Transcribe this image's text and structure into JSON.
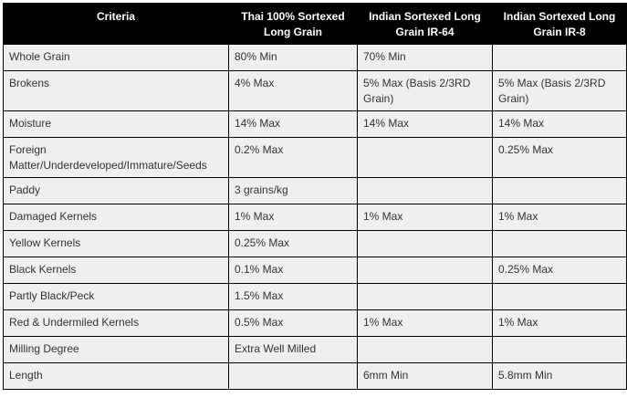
{
  "headers": [
    "Criteria",
    "Thai 100% Sortexed Long Grain",
    "Indian Sortexed Long Grain IR-64",
    "Indian Sortexed Long Grain IR-8"
  ],
  "rows": [
    [
      "Whole Grain",
      "80% Min",
      "70% Min",
      ""
    ],
    [
      "Brokens",
      "4% Max",
      "5% Max (Basis 2/3RD Grain)",
      "5% Max (Basis 2/3RD Grain)"
    ],
    [
      "Moisture",
      "14% Max",
      "14% Max",
      "14% Max"
    ],
    [
      "Foreign Matter/Underdeveloped/Immature/Seeds",
      "0.2% Max",
      "",
      "0.25% Max"
    ],
    [
      "Paddy",
      "3 grains/kg",
      "",
      ""
    ],
    [
      "Damaged Kernels",
      "1% Max",
      "1% Max",
      "1% Max"
    ],
    [
      "Yellow Kernels",
      "0.25% Max",
      "",
      ""
    ],
    [
      "Black Kernels",
      "0.1% Max",
      "",
      "0.25% Max"
    ],
    [
      "Partly Black/Peck",
      "1.5% Max",
      "",
      ""
    ],
    [
      "Red & Undermiled Kernels",
      "0.5% Max",
      "1% Max",
      "1% Max"
    ],
    [
      "Milling Degree",
      "Extra Well Milled",
      "",
      ""
    ],
    [
      "Length",
      "",
      "6mm Min",
      "5.8mm Min"
    ]
  ]
}
